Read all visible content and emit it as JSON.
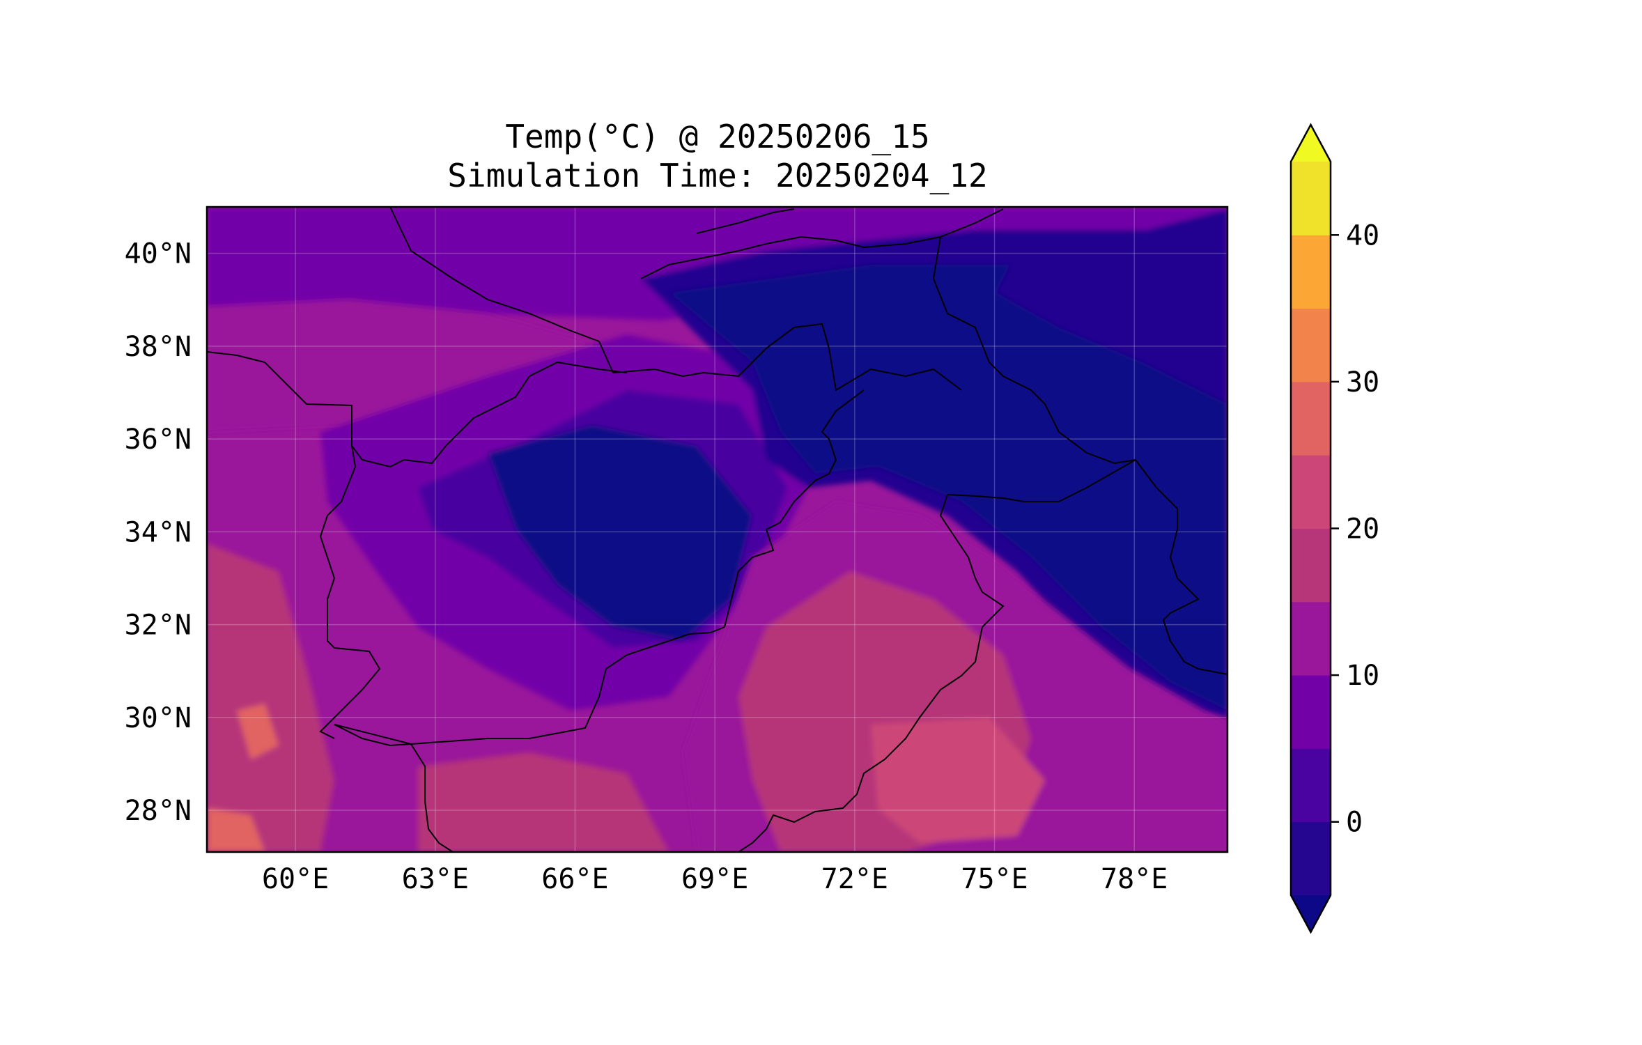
{
  "title": {
    "line1": "Temp(°C) @ 20250206_15",
    "line2": "Simulation Time: 20250204_12"
  },
  "map": {
    "lon_range": [
      58.1,
      80.0
    ],
    "lat_range": [
      27.1,
      41.0
    ],
    "x_ticks": [
      {
        "value": 60,
        "label": "60°E"
      },
      {
        "value": 63,
        "label": "63°E"
      },
      {
        "value": 66,
        "label": "66°E"
      },
      {
        "value": 69,
        "label": "69°E"
      },
      {
        "value": 72,
        "label": "72°E"
      },
      {
        "value": 75,
        "label": "75°E"
      },
      {
        "value": 78,
        "label": "78°E"
      }
    ],
    "y_ticks": [
      {
        "value": 28,
        "label": "28°N"
      },
      {
        "value": 30,
        "label": "30°N"
      },
      {
        "value": 32,
        "label": "32°N"
      },
      {
        "value": 34,
        "label": "34°N"
      },
      {
        "value": 36,
        "label": "36°N"
      },
      {
        "value": 38,
        "label": "38°N"
      },
      {
        "value": 40,
        "label": "40°N"
      }
    ],
    "grid": true
  },
  "colorbar": {
    "levels": [
      -5,
      0,
      5,
      10,
      15,
      20,
      25,
      30,
      35,
      40,
      45
    ],
    "colors": [
      "#240690",
      "#4a03a0",
      "#7201a8",
      "#9a179b",
      "#b63679",
      "#cc4778",
      "#e16462",
      "#f2844b",
      "#fca636",
      "#f0e12a"
    ],
    "under_color": "#0d0887",
    "over_color": "#f0f921",
    "ticks": [
      {
        "value": 0,
        "label": "0"
      },
      {
        "value": 10,
        "label": "10"
      },
      {
        "value": 20,
        "label": "20"
      },
      {
        "value": 30,
        "label": "30"
      },
      {
        "value": 40,
        "label": "40"
      }
    ],
    "extend": "both"
  }
}
